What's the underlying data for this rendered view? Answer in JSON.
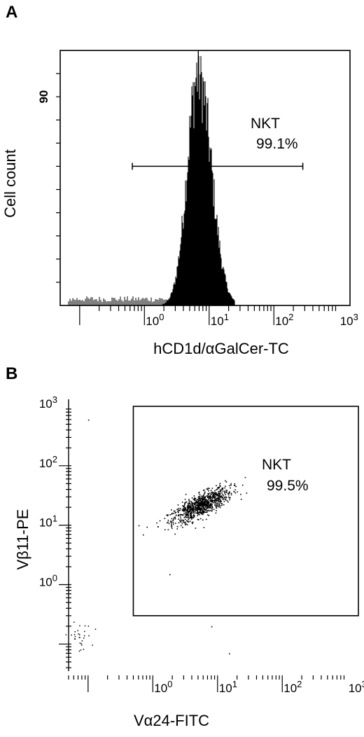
{
  "panels": {
    "a": {
      "letter": "A"
    },
    "b": {
      "letter": "B"
    }
  },
  "chart_data": [
    {
      "panel": "A",
      "type": "area",
      "xscale": "log",
      "xlabel": "hCD1d/αGalCer-TC",
      "ylabel": "Cell count",
      "xlim": [
        0.05,
        1500
      ],
      "ylim": [
        0,
        100
      ],
      "x_ticks": [
        {
          "base": "10",
          "exp": "0",
          "value": 1
        },
        {
          "base": "10",
          "exp": "1",
          "value": 10
        },
        {
          "base": "10",
          "exp": "2",
          "value": 100
        },
        {
          "base": "10",
          "exp": "3",
          "value": 1000
        }
      ],
      "y_ticks": [
        {
          "label": "90",
          "value": 90
        }
      ],
      "histogram": {
        "peak_x": 6.8,
        "peak_y": 100,
        "log_sigma_left": 0.17,
        "log_sigma_right": 0.2,
        "range": [
          0.9,
          25
        ]
      },
      "gate": {
        "name": "NKT",
        "percent": "99.1%",
        "x_range": [
          0.65,
          280
        ],
        "y": 60
      }
    },
    {
      "panel": "B",
      "type": "scatter",
      "xscale": "log",
      "yscale": "log",
      "xlabel": "Vα24-FITC",
      "ylabel": "Vβ11-PE",
      "xlim": [
        0.05,
        1500
      ],
      "ylim": [
        0.035,
        1000
      ],
      "x_ticks": [
        {
          "base": "10",
          "exp": "0",
          "value": 1
        },
        {
          "base": "10",
          "exp": "1",
          "value": 10
        },
        {
          "base": "10",
          "exp": "2",
          "value": 100
        },
        {
          "base": "10",
          "exp": "3",
          "value": 1000
        }
      ],
      "y_ticks": [
        {
          "base": "10",
          "exp": "0",
          "value": 1
        },
        {
          "base": "10",
          "exp": "1",
          "value": 10
        },
        {
          "base": "10",
          "exp": "2",
          "value": 100
        },
        {
          "base": "10",
          "exp": "3",
          "value": 1000
        }
      ],
      "main_population": {
        "center_x": 5.5,
        "center_y": 22,
        "count": 900
      },
      "low_cluster": {
        "center_x": 0.07,
        "center_y": 0.13,
        "count": 30
      },
      "gate": {
        "name": "NKT",
        "percent": "99.5%",
        "x_range": [
          0.5,
          1500
        ],
        "y_range": [
          0.3,
          1000
        ]
      }
    }
  ]
}
